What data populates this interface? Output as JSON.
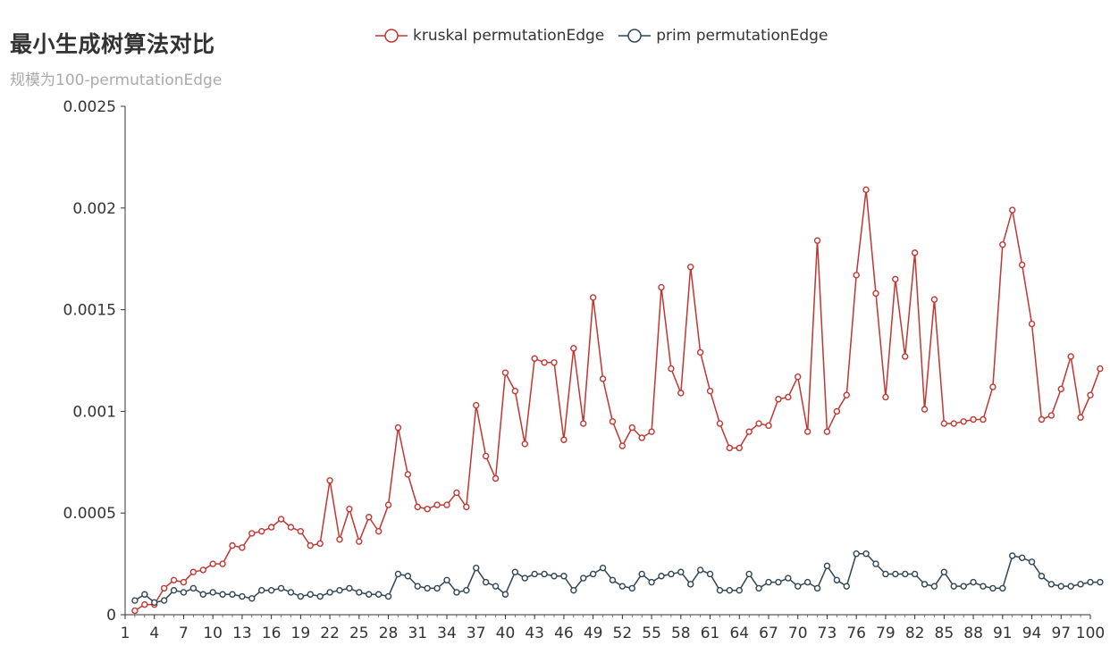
{
  "title": "最小生成树算法对比",
  "subtitle": "规模为100-permutationEdge",
  "colors": {
    "kruskal": "#c23531",
    "prim": "#2f4554",
    "axis": "#333333"
  },
  "legend": [
    {
      "label": "kruskal permutationEdge",
      "color": "#c23531"
    },
    {
      "label": "prim permutationEdge",
      "color": "#2f4554"
    }
  ],
  "chart_data": {
    "type": "line",
    "title": "最小生成树算法对比",
    "subtitle": "规模为100-permutationEdge",
    "xlim": [
      1,
      100
    ],
    "ylim": [
      0,
      0.0025
    ],
    "y_ticks": [
      0,
      0.0005,
      0.001,
      0.0015,
      0.002,
      0.0025
    ],
    "y_tick_labels": [
      "0",
      "0.0005",
      "0.001",
      "0.0015",
      "0.002",
      "0.0025"
    ],
    "x_tick_labels": [
      "1",
      "4",
      "7",
      "10",
      "13",
      "16",
      "19",
      "22",
      "25",
      "28",
      "31",
      "34",
      "37",
      "40",
      "43",
      "46",
      "49",
      "52",
      "55",
      "58",
      "61",
      "64",
      "67",
      "70",
      "73",
      "76",
      "79",
      "82",
      "85",
      "88",
      "91",
      "94",
      "97",
      "100"
    ],
    "grid": false,
    "legend_position": "top-center",
    "series": [
      {
        "name": "kruskal permutationEdge",
        "x_start": 2,
        "values": [
          2e-05,
          5e-05,
          5e-05,
          0.00013,
          0.00017,
          0.00016,
          0.00021,
          0.00022,
          0.00025,
          0.00025,
          0.00034,
          0.00033,
          0.0004,
          0.00041,
          0.00043,
          0.00047,
          0.00043,
          0.00041,
          0.00034,
          0.00035,
          0.00066,
          0.00037,
          0.00052,
          0.00036,
          0.00048,
          0.00041,
          0.00054,
          0.00092,
          0.00069,
          0.00053,
          0.00052,
          0.00054,
          0.00054,
          0.0006,
          0.00053,
          0.00103,
          0.00078,
          0.00067,
          0.00119,
          0.0011,
          0.00084,
          0.00126,
          0.00124,
          0.00124,
          0.00086,
          0.00131,
          0.00094,
          0.00156,
          0.00116,
          0.00095,
          0.00083,
          0.00092,
          0.00087,
          0.0009,
          0.00161,
          0.00121,
          0.00109,
          0.00171,
          0.00129,
          0.0011,
          0.00094,
          0.00082,
          0.00082,
          0.0009,
          0.00094,
          0.00093,
          0.00106,
          0.00107,
          0.00117,
          0.0009,
          0.00184,
          0.0009,
          0.001,
          0.00108,
          0.00167,
          0.00209,
          0.00158,
          0.00107,
          0.00165,
          0.00127,
          0.00178,
          0.00101,
          0.00155,
          0.00094,
          0.00094,
          0.00095,
          0.00096,
          0.00096,
          0.00112,
          0.00182,
          0.00199,
          0.00172,
          0.00143,
          0.00096,
          0.00098,
          0.00111,
          0.00127,
          0.00097,
          0.00108,
          0.00121
        ]
      },
      {
        "name": "prim permutationEdge",
        "x_start": 2,
        "values": [
          7e-05,
          0.0001,
          6e-05,
          7e-05,
          0.00012,
          0.00011,
          0.00013,
          0.0001,
          0.00011,
          0.0001,
          0.0001,
          9e-05,
          8e-05,
          0.00012,
          0.00012,
          0.00013,
          0.00011,
          9e-05,
          0.0001,
          9e-05,
          0.00011,
          0.00012,
          0.00013,
          0.00011,
          0.0001,
          0.0001,
          9e-05,
          0.0002,
          0.00019,
          0.00014,
          0.00013,
          0.00013,
          0.00017,
          0.00011,
          0.00012,
          0.00023,
          0.00016,
          0.00014,
          0.0001,
          0.00021,
          0.00018,
          0.0002,
          0.0002,
          0.00019,
          0.00019,
          0.00012,
          0.00018,
          0.0002,
          0.00023,
          0.00017,
          0.00014,
          0.00013,
          0.0002,
          0.00016,
          0.00019,
          0.0002,
          0.00021,
          0.00015,
          0.00022,
          0.0002,
          0.00012,
          0.00012,
          0.00012,
          0.0002,
          0.00013,
          0.00016,
          0.00016,
          0.00018,
          0.00014,
          0.00016,
          0.00013,
          0.00024,
          0.00017,
          0.00014,
          0.0003,
          0.0003,
          0.00025,
          0.0002,
          0.0002,
          0.0002,
          0.0002,
          0.00015,
          0.00014,
          0.00021,
          0.00014,
          0.00014,
          0.00016,
          0.00014,
          0.00013,
          0.00013,
          0.00029,
          0.00028,
          0.00026,
          0.00019,
          0.00015,
          0.00014,
          0.00014,
          0.00015,
          0.00016,
          0.00016
        ]
      }
    ]
  }
}
